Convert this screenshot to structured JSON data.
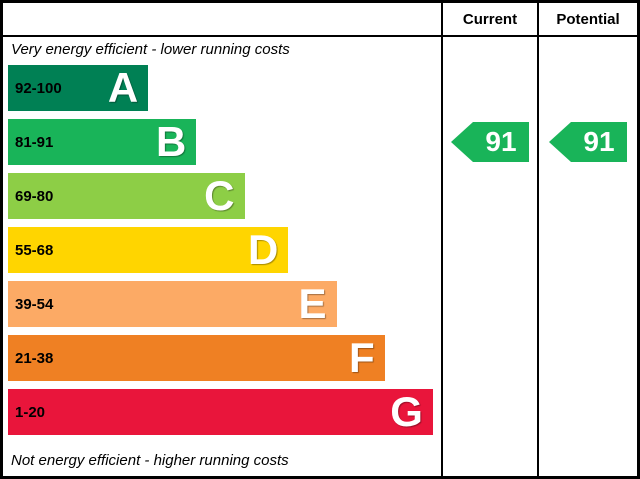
{
  "header": {
    "current_label": "Current",
    "potential_label": "Potential"
  },
  "chart_data": {
    "type": "bar",
    "subtype": "epc-energy-efficiency-rating",
    "title_top": "Very energy efficient - lower running costs",
    "title_bottom": "Not energy efficient - higher running costs",
    "bands": [
      {
        "letter": "A",
        "range": "92-100",
        "color": "#008054",
        "width_pct": 32
      },
      {
        "letter": "B",
        "range": "81-91",
        "color": "#19b459",
        "width_pct": 43
      },
      {
        "letter": "C",
        "range": "69-80",
        "color": "#8dce46",
        "width_pct": 54
      },
      {
        "letter": "D",
        "range": "55-68",
        "color": "#ffd500",
        "width_pct": 64
      },
      {
        "letter": "E",
        "range": "39-54",
        "color": "#fcaa65",
        "width_pct": 75
      },
      {
        "letter": "F",
        "range": "21-38",
        "color": "#ef8023",
        "width_pct": 86
      },
      {
        "letter": "G",
        "range": "1-20",
        "color": "#e9153b",
        "width_pct": 97
      }
    ],
    "current": {
      "value": 91,
      "band": "B"
    },
    "potential": {
      "value": 91,
      "band": "B"
    },
    "arrow_color": "#19b459"
  }
}
